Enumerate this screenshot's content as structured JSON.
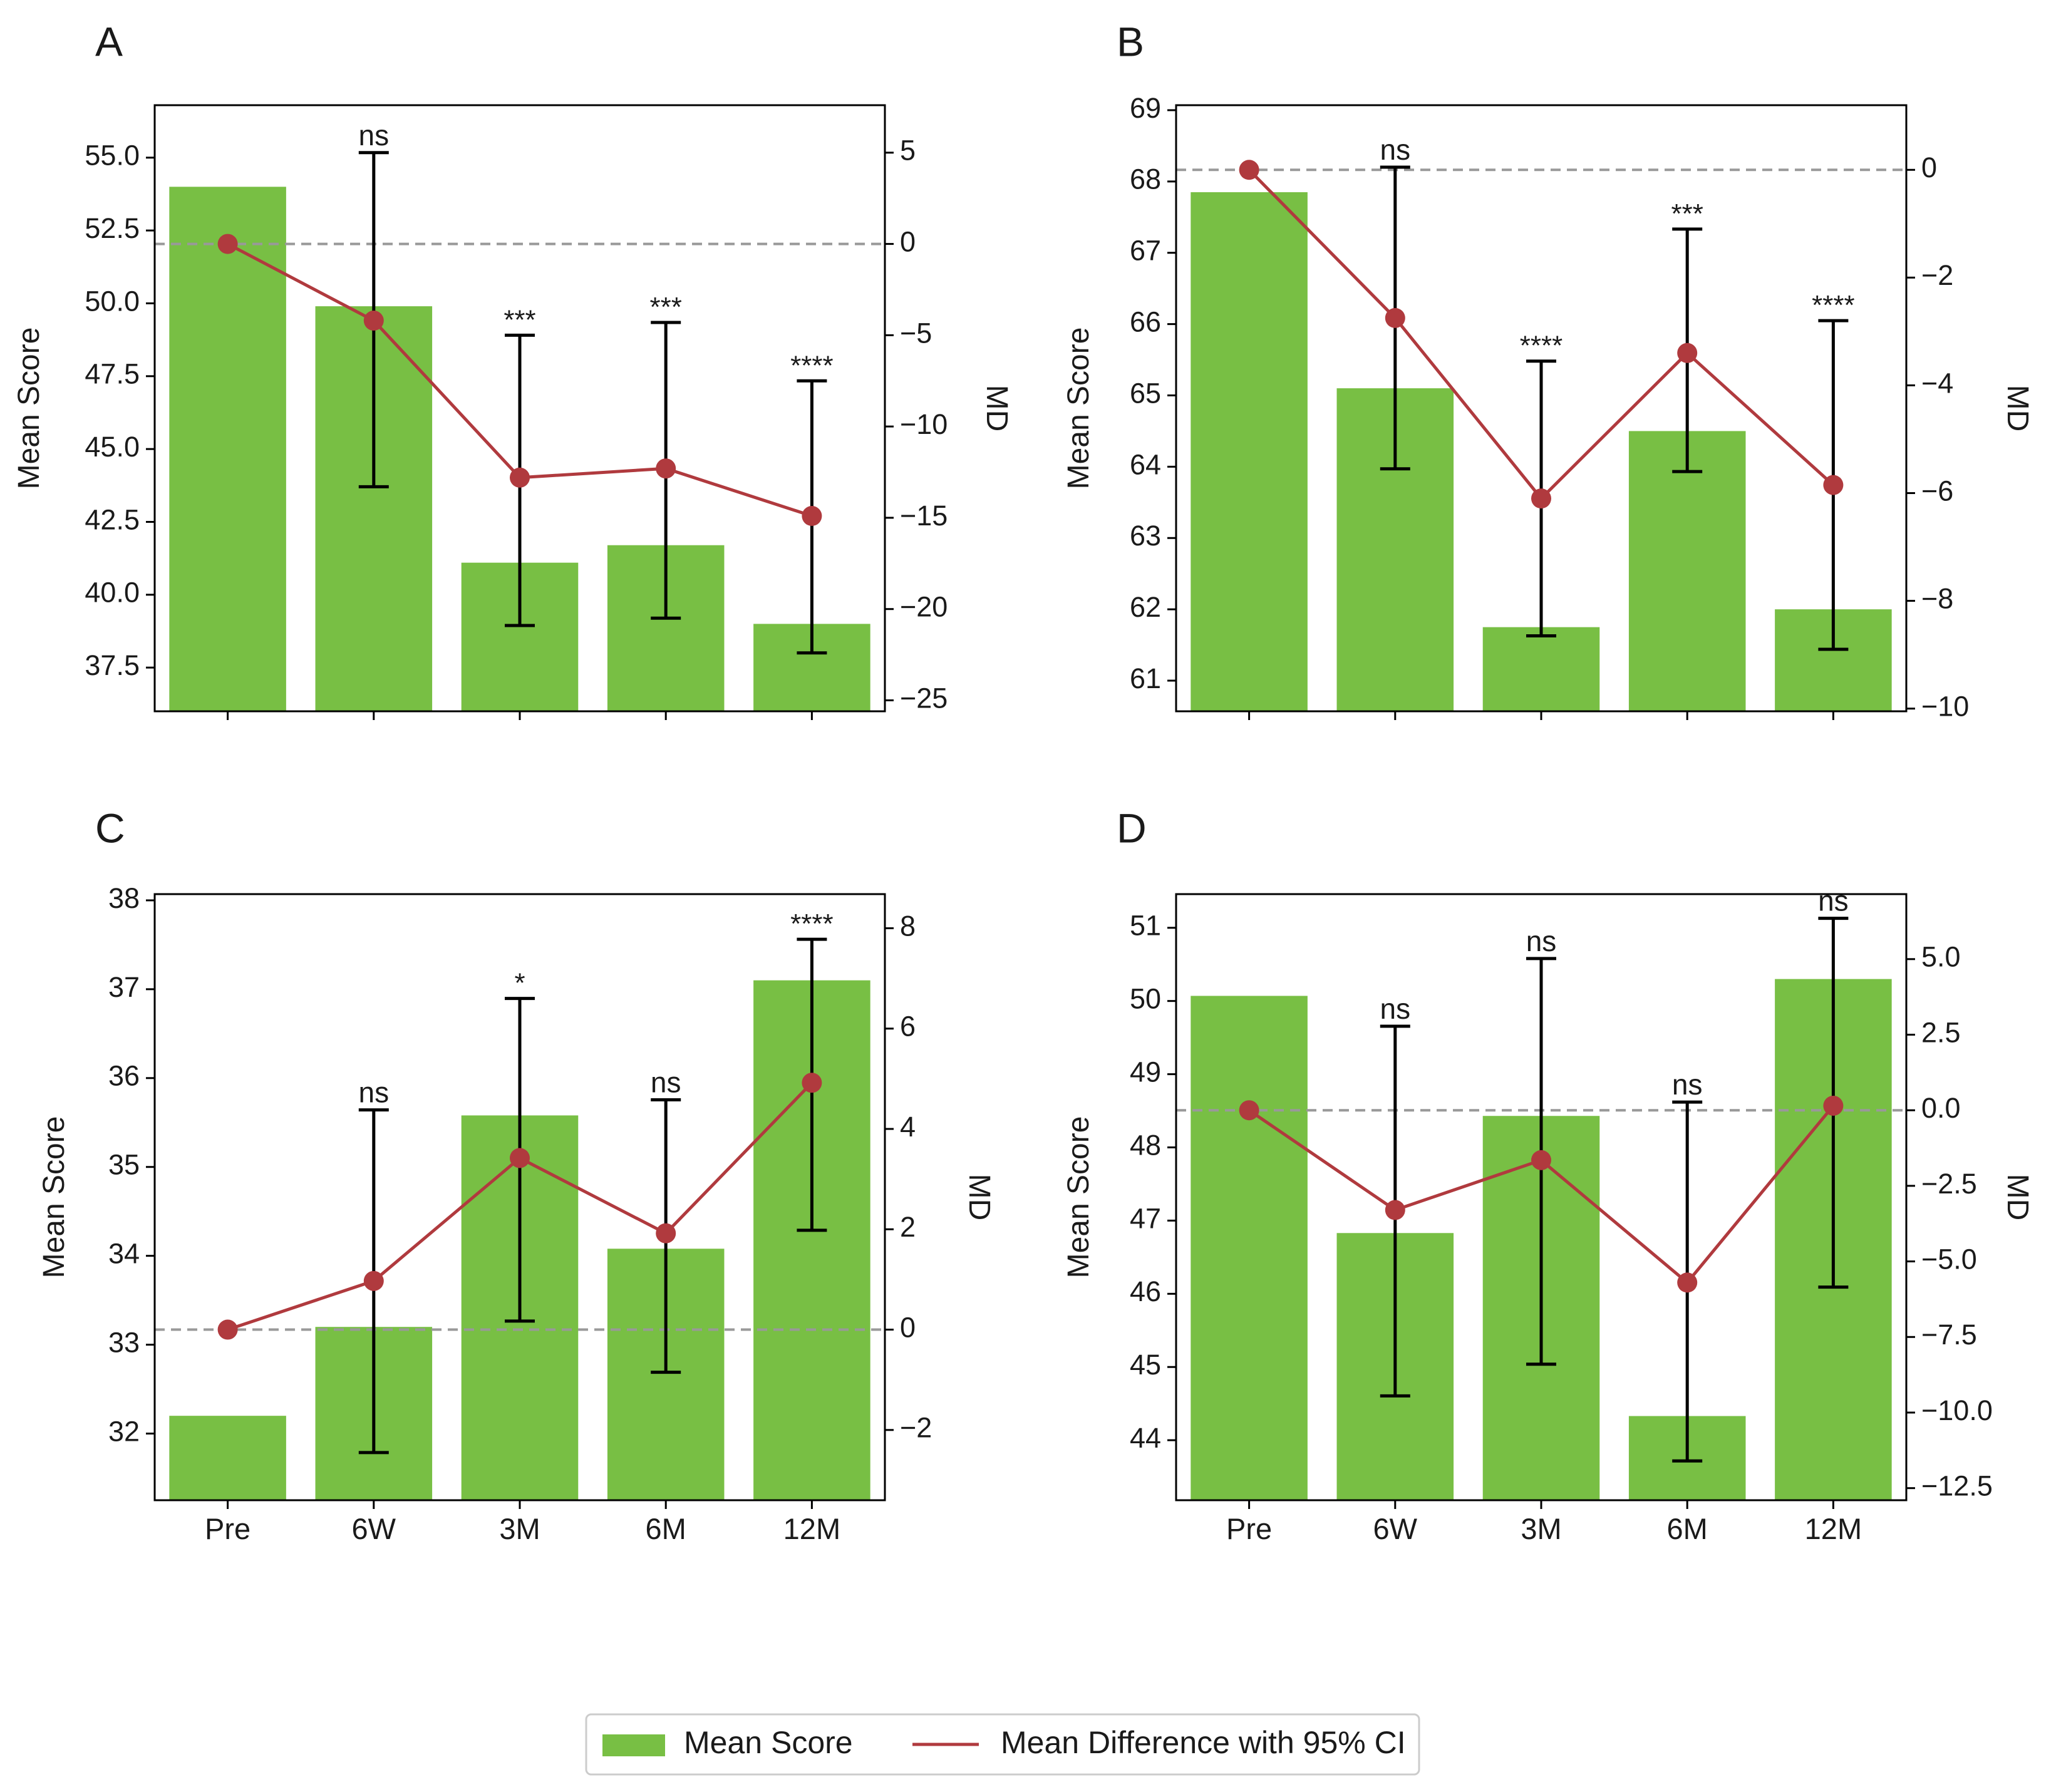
{
  "figure": {
    "legend": {
      "bar_label": "Mean Score",
      "line_label": "Mean Difference with 95% CI",
      "placement": "bottom-center"
    },
    "colors": {
      "bar": "#78bf44",
      "line": "#b03a3e",
      "error": "#000000",
      "ref": "#999999",
      "axis": "#000000"
    }
  },
  "chart_data": [
    {
      "panel": "A",
      "type": "bar+line",
      "categories": [
        "Pre",
        "6W",
        "3M",
        "6M",
        "12M"
      ],
      "ylabel": "Mean Score",
      "y2label": "MD",
      "ylim": [
        36.0,
        56.8
      ],
      "yticks": [
        "37.5",
        "40.0",
        "42.5",
        "45.0",
        "47.5",
        "50.0",
        "52.5",
        "55.0"
      ],
      "y2lim": [
        -25.6,
        7.6
      ],
      "y2ticks": [
        "−25",
        "−20",
        "−15",
        "−10",
        "−5",
        "0",
        "5"
      ],
      "show_xticklabels": false,
      "bars": [
        54.0,
        49.9,
        41.1,
        41.7,
        39.0
      ],
      "md": [
        0.0,
        -4.2,
        -12.8,
        -12.3,
        -14.9
      ],
      "ci_low": [
        null,
        -13.3,
        -20.9,
        -20.5,
        -22.4
      ],
      "ci_high": [
        null,
        5.0,
        -5.0,
        -4.3,
        -7.5
      ],
      "sig": [
        "",
        "ns",
        "***",
        "***",
        "****"
      ],
      "refline": 0
    },
    {
      "panel": "B",
      "type": "bar+line",
      "categories": [
        "Pre",
        "6W",
        "3M",
        "6M",
        "12M"
      ],
      "ylabel": "Mean Score",
      "y2label": "MD",
      "ylim": [
        60.57,
        69.07
      ],
      "yticks": [
        "61",
        "62",
        "63",
        "64",
        "65",
        "66",
        "67",
        "68",
        "69"
      ],
      "y2lim": [
        -10.05,
        1.2
      ],
      "y2ticks": [
        "−10",
        "−8",
        "−6",
        "−4",
        "−2",
        "0"
      ],
      "show_xticklabels": false,
      "bars": [
        67.85,
        65.1,
        61.75,
        64.5,
        62.0
      ],
      "md": [
        0.0,
        -2.75,
        -6.1,
        -3.4,
        -5.85
      ],
      "ci_low": [
        null,
        -5.55,
        -8.65,
        -5.6,
        -8.9
      ],
      "ci_high": [
        null,
        0.05,
        -3.55,
        -1.1,
        -2.8
      ],
      "sig": [
        "",
        "ns",
        "****",
        "***",
        "****"
      ],
      "refline": 0
    },
    {
      "panel": "C",
      "type": "bar+line",
      "categories": [
        "Pre",
        "6W",
        "3M",
        "6M",
        "12M"
      ],
      "ylabel": "Mean Score",
      "y2label": "MD",
      "ylim": [
        31.25,
        38.07
      ],
      "yticks": [
        "32",
        "33",
        "34",
        "35",
        "36",
        "37",
        "38"
      ],
      "y2lim": [
        -3.4,
        8.68
      ],
      "y2ticks": [
        "−2",
        "0",
        "2",
        "4",
        "6",
        "8"
      ],
      "show_xticklabels": true,
      "bars": [
        32.2,
        33.2,
        35.58,
        34.08,
        37.1
      ],
      "md": [
        0.0,
        0.97,
        3.42,
        1.92,
        4.92
      ],
      "ci_low": [
        null,
        -2.45,
        0.17,
        -0.85,
        1.98
      ],
      "ci_high": [
        null,
        4.38,
        6.6,
        4.58,
        7.78
      ],
      "sig": [
        "",
        "ns",
        "*",
        "ns",
        "****"
      ],
      "refline": 0
    },
    {
      "panel": "D",
      "type": "bar+line",
      "categories": [
        "Pre",
        "6W",
        "3M",
        "6M",
        "12M"
      ],
      "ylabel": "Mean Score",
      "y2label": "MD",
      "ylim": [
        43.18,
        51.46
      ],
      "yticks": [
        "44",
        "45",
        "46",
        "47",
        "48",
        "49",
        "50",
        "51"
      ],
      "y2lim": [
        -12.9,
        7.15
      ],
      "y2ticks": [
        "−12.5",
        "−10.0",
        "−7.5",
        "−5.0",
        "−2.5",
        "0.0",
        "2.5",
        "5.0"
      ],
      "show_xticklabels": true,
      "bars": [
        50.07,
        46.83,
        48.43,
        44.33,
        50.3
      ],
      "md": [
        0.0,
        -3.3,
        -1.65,
        -5.7,
        0.15
      ],
      "ci_low": [
        null,
        -9.45,
        -8.4,
        -11.6,
        -5.85
      ],
      "ci_high": [
        null,
        2.78,
        5.02,
        0.27,
        6.35
      ],
      "sig": [
        "",
        "ns",
        "ns",
        "ns",
        "ns"
      ],
      "refline": 0
    }
  ]
}
